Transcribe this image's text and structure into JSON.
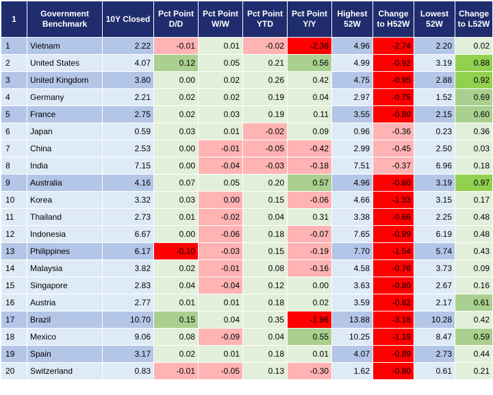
{
  "headers": [
    "1",
    "Government Benchmark",
    "10Y Closed",
    "Pct Point D/D",
    "Pct Point W/W",
    "Pct Point YTD",
    "Pct Point Y/Y",
    "Highest 52W",
    "Change to H52W",
    "Lowest 52W",
    "Change to L52W"
  ],
  "rows": [
    {
      "idx": "1",
      "country": "Vietnam",
      "closed": "2.22",
      "dd": "-0.01",
      "ww": "0.01",
      "ytd": "-0.02",
      "yy": "-2.36",
      "h52": "4.96",
      "ch52": "-2.74",
      "l52": "2.20",
      "cl52": "0.02",
      "tones": {
        "dd": "pink",
        "ww": "neutral",
        "ytd": "pink",
        "yy": "red",
        "ch52": "red",
        "cl52": "neutral"
      }
    },
    {
      "idx": "2",
      "country": "United States",
      "closed": "4.07",
      "dd": "0.12",
      "ww": "0.05",
      "ytd": "0.21",
      "yy": "0.56",
      "h52": "4.99",
      "ch52": "-0.92",
      "l52": "3.19",
      "cl52": "0.88",
      "tones": {
        "dd": "lightgreen",
        "ww": "neutral",
        "ytd": "neutral",
        "yy": "lightgreen",
        "ch52": "red",
        "cl52": "green"
      }
    },
    {
      "idx": "3",
      "country": "United Kingdom",
      "closed": "3.80",
      "dd": "0.00",
      "ww": "0.02",
      "ytd": "0.26",
      "yy": "0.42",
      "h52": "4.75",
      "ch52": "-0.95",
      "l52": "2.88",
      "cl52": "0.92",
      "tones": {
        "dd": "neutral",
        "ww": "neutral",
        "ytd": "neutral",
        "yy": "neutral",
        "ch52": "red",
        "cl52": "green"
      }
    },
    {
      "idx": "4",
      "country": "Germany",
      "closed": "2.21",
      "dd": "0.02",
      "ww": "0.02",
      "ytd": "0.19",
      "yy": "0.04",
      "h52": "2.97",
      "ch52": "-0.75",
      "l52": "1.52",
      "cl52": "0.69",
      "tones": {
        "dd": "neutral",
        "ww": "neutral",
        "ytd": "neutral",
        "yy": "neutral",
        "ch52": "red",
        "cl52": "lightgreen"
      }
    },
    {
      "idx": "5",
      "country": "France",
      "closed": "2.75",
      "dd": "0.02",
      "ww": "0.03",
      "ytd": "0.19",
      "yy": "0.11",
      "h52": "3.55",
      "ch52": "-0.80",
      "l52": "2.15",
      "cl52": "0.60",
      "tones": {
        "dd": "neutral",
        "ww": "neutral",
        "ytd": "neutral",
        "yy": "neutral",
        "ch52": "red",
        "cl52": "lightgreen"
      }
    },
    {
      "idx": "6",
      "country": "Japan",
      "closed": "0.59",
      "dd": "0.03",
      "ww": "0.01",
      "ytd": "-0.02",
      "yy": "0.09",
      "h52": "0.96",
      "ch52": "-0.36",
      "l52": "0.23",
      "cl52": "0.36",
      "tones": {
        "dd": "neutral",
        "ww": "neutral",
        "ytd": "pink",
        "yy": "neutral",
        "ch52": "pink",
        "cl52": "neutral"
      }
    },
    {
      "idx": "7",
      "country": "China",
      "closed": "2.53",
      "dd": "0.00",
      "ww": "-0.01",
      "ytd": "-0.05",
      "yy": "-0.42",
      "h52": "2.99",
      "ch52": "-0.45",
      "l52": "2.50",
      "cl52": "0.03",
      "tones": {
        "dd": "neutral",
        "ww": "pink",
        "ytd": "pink",
        "yy": "pink",
        "ch52": "pink",
        "cl52": "neutral"
      }
    },
    {
      "idx": "8",
      "country": "India",
      "closed": "7.15",
      "dd": "0.00",
      "ww": "-0.04",
      "ytd": "-0.03",
      "yy": "-0.18",
      "h52": "7.51",
      "ch52": "-0.37",
      "l52": "6.96",
      "cl52": "0.18",
      "tones": {
        "dd": "neutral",
        "ww": "pink",
        "ytd": "pink",
        "yy": "pink",
        "ch52": "pink",
        "cl52": "neutral"
      }
    },
    {
      "idx": "9",
      "country": "Australia",
      "closed": "4.16",
      "dd": "0.07",
      "ww": "0.05",
      "ytd": "0.20",
      "yy": "0.57",
      "h52": "4.96",
      "ch52": "-0.80",
      "l52": "3.19",
      "cl52": "0.97",
      "tones": {
        "dd": "neutral",
        "ww": "neutral",
        "ytd": "neutral",
        "yy": "lightgreen",
        "ch52": "red",
        "cl52": "green"
      }
    },
    {
      "idx": "10",
      "country": "Korea",
      "closed": "3.32",
      "dd": "0.03",
      "ww": "0.00",
      "ytd": "0.15",
      "yy": "-0.06",
      "h52": "4.66",
      "ch52": "-1.33",
      "l52": "3.15",
      "cl52": "0.17",
      "tones": {
        "dd": "neutral",
        "ww": "pink",
        "ytd": "neutral",
        "yy": "pink",
        "ch52": "red",
        "cl52": "neutral"
      }
    },
    {
      "idx": "11",
      "country": "Thailand",
      "closed": "2.73",
      "dd": "0.01",
      "ww": "-0.02",
      "ytd": "0.04",
      "yy": "0.31",
      "h52": "3.38",
      "ch52": "-0.66",
      "l52": "2.25",
      "cl52": "0.48",
      "tones": {
        "dd": "neutral",
        "ww": "pink",
        "ytd": "neutral",
        "yy": "neutral",
        "ch52": "red",
        "cl52": "neutral"
      }
    },
    {
      "idx": "12",
      "country": "Indonesia",
      "closed": "6.67",
      "dd": "0.00",
      "ww": "-0.06",
      "ytd": "0.18",
      "yy": "-0.07",
      "h52": "7.65",
      "ch52": "-0.99",
      "l52": "6.19",
      "cl52": "0.48",
      "tones": {
        "dd": "neutral",
        "ww": "pink",
        "ytd": "neutral",
        "yy": "pink",
        "ch52": "red",
        "cl52": "neutral"
      }
    },
    {
      "idx": "13",
      "country": "Philippines",
      "closed": "6.17",
      "dd": "-0.10",
      "ww": "-0.03",
      "ytd": "0.15",
      "yy": "-0.19",
      "h52": "7.70",
      "ch52": "-1.54",
      "l52": "5.74",
      "cl52": "0.43",
      "tones": {
        "dd": "red",
        "ww": "pink",
        "ytd": "neutral",
        "yy": "pink",
        "ch52": "red",
        "cl52": "neutral"
      }
    },
    {
      "idx": "14",
      "country": "Malaysia",
      "closed": "3.82",
      "dd": "0.02",
      "ww": "-0.01",
      "ytd": "0.08",
      "yy": "-0.16",
      "h52": "4.58",
      "ch52": "-0.76",
      "l52": "3.73",
      "cl52": "0.09",
      "tones": {
        "dd": "neutral",
        "ww": "pink",
        "ytd": "neutral",
        "yy": "pink",
        "ch52": "red",
        "cl52": "neutral"
      }
    },
    {
      "idx": "15",
      "country": "Singapore",
      "closed": "2.83",
      "dd": "0.04",
      "ww": "-0.04",
      "ytd": "0.12",
      "yy": "0.00",
      "h52": "3.63",
      "ch52": "-0.80",
      "l52": "2.67",
      "cl52": "0.16",
      "tones": {
        "dd": "neutral",
        "ww": "pink",
        "ytd": "neutral",
        "yy": "neutral",
        "ch52": "red",
        "cl52": "neutral"
      }
    },
    {
      "idx": "16",
      "country": "Austria",
      "closed": "2.77",
      "dd": "0.01",
      "ww": "0.01",
      "ytd": "0.18",
      "yy": "0.02",
      "h52": "3.59",
      "ch52": "-0.82",
      "l52": "2.17",
      "cl52": "0.61",
      "tones": {
        "dd": "neutral",
        "ww": "neutral",
        "ytd": "neutral",
        "yy": "neutral",
        "ch52": "red",
        "cl52": "lightgreen"
      }
    },
    {
      "idx": "17",
      "country": "Brazil",
      "closed": "10.70",
      "dd": "0.15",
      "ww": "0.04",
      "ytd": "0.35",
      "yy": "-1.96",
      "h52": "13.88",
      "ch52": "-3.18",
      "l52": "10.28",
      "cl52": "0.42",
      "tones": {
        "dd": "lightgreen",
        "ww": "neutral",
        "ytd": "neutral",
        "yy": "red",
        "ch52": "red",
        "cl52": "neutral"
      }
    },
    {
      "idx": "18",
      "country": "Mexico",
      "closed": "9.06",
      "dd": "0.08",
      "ww": "-0.09",
      "ytd": "0.04",
      "yy": "0.55",
      "h52": "10.25",
      "ch52": "-1.19",
      "l52": "8.47",
      "cl52": "0.59",
      "tones": {
        "dd": "neutral",
        "ww": "pink",
        "ytd": "neutral",
        "yy": "lightgreen",
        "ch52": "red",
        "cl52": "lightgreen"
      }
    },
    {
      "idx": "19",
      "country": "Spain",
      "closed": "3.17",
      "dd": "0.02",
      "ww": "0.01",
      "ytd": "0.18",
      "yy": "0.01",
      "h52": "4.07",
      "ch52": "-0.89",
      "l52": "2.73",
      "cl52": "0.44",
      "tones": {
        "dd": "neutral",
        "ww": "neutral",
        "ytd": "neutral",
        "yy": "neutral",
        "ch52": "red",
        "cl52": "neutral"
      }
    },
    {
      "idx": "20",
      "country": "Switzerland",
      "closed": "0.83",
      "dd": "-0.01",
      "ww": "-0.05",
      "ytd": "0.13",
      "yy": "-0.30",
      "h52": "1.62",
      "ch52": "-0.80",
      "l52": "0.61",
      "cl52": "0.21",
      "tones": {
        "dd": "pink",
        "ww": "pink",
        "ytd": "neutral",
        "yy": "pink",
        "ch52": "red",
        "cl52": "neutral"
      }
    }
  ],
  "colors": {
    "header_bg": "#1f2d6e",
    "row_blue": "#b4c6e7",
    "row_light": "#deebf7",
    "red": "#ff0000",
    "pink": "#ffb3b3",
    "neutral": "#e2efda",
    "light_green": "#a9d08e",
    "green": "#92d050"
  }
}
